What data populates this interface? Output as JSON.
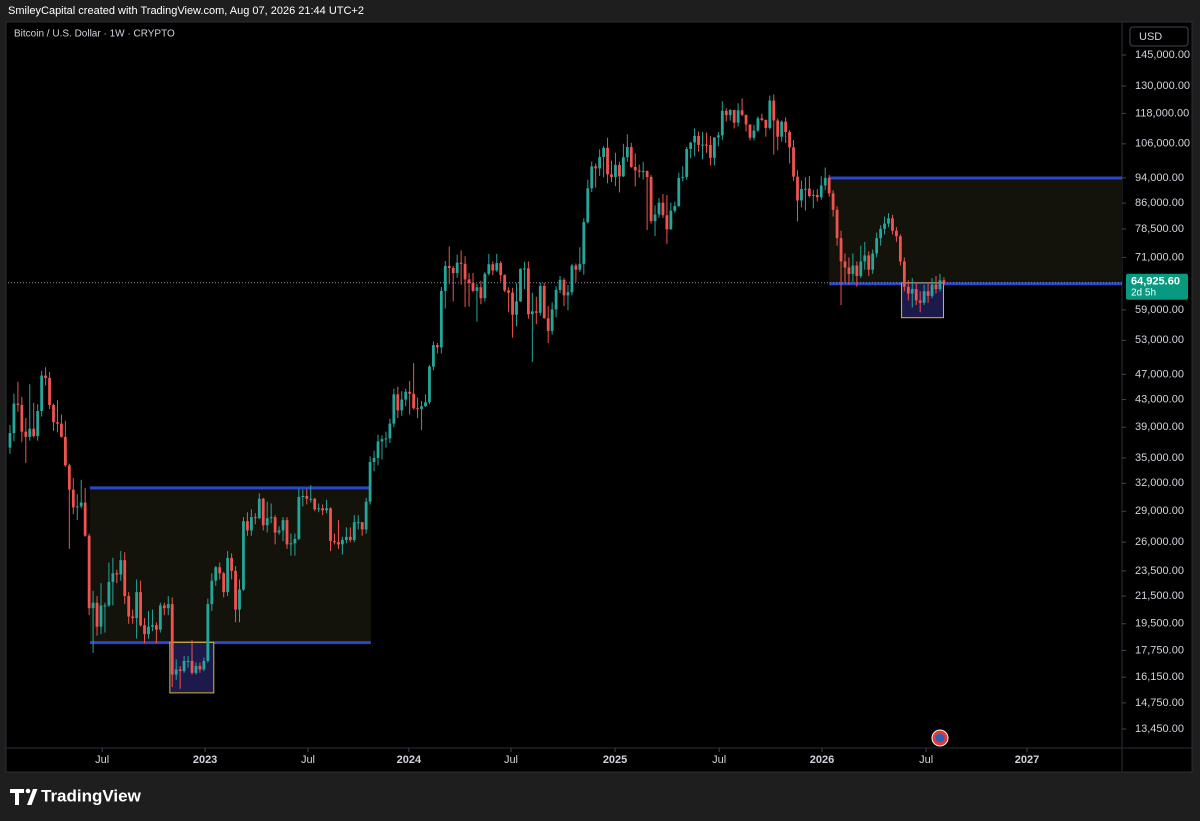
{
  "header": {
    "text": "SmileyCapital created with TradingView.com, Aug 07, 2026 21:44 UTC+2"
  },
  "chart_data": {
    "type": "candlestick",
    "title": "Bitcoin / U.S. Dollar · 1W · CRYPTO",
    "currency": "USD",
    "open": [
      36300,
      38200,
      42400,
      42200,
      38400,
      37700,
      38800,
      37800,
      41300,
      46800,
      46400,
      42200,
      39700,
      39500,
      37700,
      34100,
      31300,
      29400,
      29500,
      29900,
      26600,
      20600,
      21000,
      19300,
      20800,
      20800,
      22600,
      23300,
      23200,
      24400,
      21500,
      20000,
      19900,
      21800,
      19400,
      18800,
      19300,
      19400,
      19100,
      20800,
      20600,
      20900,
      16300,
      16600,
      16500,
      17100,
      17100,
      16400,
      16800,
      16600,
      17100,
      20900,
      22700,
      23800,
      23300,
      21800,
      24600,
      23500,
      20500,
      22000,
      28000,
      27100,
      28400,
      28300,
      30300,
      27600,
      28300,
      28400,
      26900,
      27100,
      28100,
      25800,
      25900,
      26300,
      30500,
      30600,
      30300,
      30300,
      29200,
      29300,
      29100,
      29300,
      26100,
      26000,
      25800,
      26200,
      26500,
      26200,
      27900,
      27900,
      27200,
      30000,
      34500,
      35000,
      37100,
      37400,
      37500,
      39500,
      43800,
      41400,
      43000,
      44200,
      43900,
      41700,
      41600,
      42000,
      42600,
      48300,
      52100,
      51700,
      63100,
      68900,
      68400,
      67200,
      69700,
      69400,
      65700,
      64900,
      63100,
      63900,
      61500,
      67000,
      69300,
      67800,
      69600,
      66700,
      63200,
      62700,
      58000,
      60800,
      68200,
      68300,
      58100,
      58700,
      58400,
      64200,
      57300,
      54800,
      59100,
      63300,
      65600,
      62100,
      62800,
      69000,
      68000,
      69400,
      80400,
      90600,
      97900,
      97200,
      101200,
      104500,
      95200,
      94300,
      98400,
      94500,
      101100,
      104800,
      97700,
      96500,
      96100,
      96300,
      94300,
      80700,
      82600,
      86100,
      82400,
      78400,
      83700,
      85100,
      94000,
      94300,
      104100,
      106500,
      109000,
      105600,
      105700,
      105600,
      100900,
      108400,
      109200,
      119100,
      117300,
      119400,
      114200,
      119300,
      117400,
      113500,
      108300,
      111100,
      116000,
      115300,
      112100,
      123500,
      115100,
      108700,
      114600,
      110500,
      104700,
      94400,
      86800,
      90400,
      90500,
      88200,
      88500,
      87800,
      91500,
      94000,
      89000,
      84000,
      76000,
      70000,
      68500,
      67000,
      69000,
      66500,
      70000,
      71500,
      68000,
      72000,
      76000,
      78500,
      80000,
      81500,
      78000,
      76500,
      70000,
      64000,
      62500,
      63500,
      61000,
      60500,
      63000,
      62000,
      64500,
      63500,
      65500
    ],
    "high": [
      39300,
      43900,
      45800,
      43400,
      40300,
      45400,
      42500,
      42300,
      47600,
      48200,
      47400,
      42400,
      42900,
      40800,
      39900,
      34300,
      32600,
      30800,
      32400,
      31500,
      26800,
      21900,
      21500,
      22500,
      21000,
      24200,
      24600,
      23600,
      25200,
      25100,
      21800,
      20500,
      22800,
      22700,
      19900,
      20400,
      20500,
      19600,
      21000,
      21000,
      21500,
      21400,
      17200,
      16800,
      17400,
      17400,
      18400,
      17000,
      17000,
      17300,
      21300,
      23300,
      23900,
      24200,
      23400,
      25200,
      25000,
      23900,
      22800,
      28400,
      28900,
      29200,
      28800,
      30900,
      30400,
      30000,
      29800,
      28600,
      27500,
      28400,
      28400,
      26800,
      26800,
      31400,
      31300,
      31400,
      31800,
      30400,
      29800,
      29700,
      30200,
      29400,
      26800,
      28100,
      26500,
      27400,
      27400,
      28600,
      28600,
      27900,
      30400,
      35200,
      35900,
      38000,
      37900,
      38400,
      40200,
      44700,
      45000,
      44300,
      44700,
      45900,
      48900,
      43300,
      42800,
      43800,
      48600,
      52800,
      52500,
      64000,
      70100,
      73800,
      68900,
      71700,
      72800,
      71300,
      67200,
      67200,
      64700,
      65400,
      67400,
      71900,
      70000,
      71900,
      70100,
      66900,
      63900,
      63800,
      64800,
      68300,
      69900,
      70000,
      62700,
      61800,
      65000,
      64900,
      59800,
      60600,
      64100,
      66500,
      66000,
      64400,
      69400,
      69500,
      73600,
      81500,
      93400,
      99600,
      98900,
      104000,
      105100,
      108300,
      99900,
      102700,
      99500,
      106000,
      109600,
      106400,
      102500,
      98500,
      99500,
      96500,
      95000,
      85300,
      87500,
      88800,
      88500,
      86100,
      86400,
      95700,
      97900,
      104900,
      106700,
      111900,
      110700,
      110500,
      110300,
      108900,
      108500,
      110500,
      123200,
      120200,
      119800,
      119500,
      122300,
      124400,
      117500,
      113500,
      113300,
      116800,
      117900,
      115500,
      125700,
      126200,
      115900,
      115100,
      116400,
      111200,
      107500,
      96600,
      93100,
      94200,
      94600,
      90100,
      90300,
      94500,
      97500,
      95000,
      90000,
      85000,
      78000,
      72000,
      71000,
      72000,
      70000,
      74000,
      75000,
      72500,
      73000,
      77500,
      79500,
      82000,
      83000,
      82500,
      79000,
      77000,
      71000,
      65500,
      66000,
      65000,
      63000,
      64500,
      65000,
      66000,
      66500,
      67000,
      66200
    ],
    "low": [
      35500,
      37100,
      41200,
      37000,
      34400,
      37200,
      37600,
      37200,
      40500,
      45200,
      41600,
      38500,
      38300,
      37600,
      33900,
      25400,
      28700,
      28100,
      29300,
      26500,
      20100,
      17600,
      18700,
      18800,
      18900,
      20700,
      20800,
      22500,
      22700,
      20900,
      19500,
      19500,
      18500,
      19300,
      18200,
      18500,
      19000,
      18200,
      18900,
      20100,
      20100,
      15600,
      16000,
      15500,
      16400,
      16700,
      16300,
      16300,
      16400,
      16500,
      17000,
      20400,
      22300,
      22800,
      21400,
      21500,
      22800,
      19600,
      19600,
      21900,
      26600,
      26600,
      27700,
      28200,
      27100,
      26900,
      27800,
      25800,
      26700,
      26100,
      25400,
      24800,
      24800,
      26200,
      29500,
      29700,
      29900,
      29000,
      28900,
      28600,
      28800,
      25200,
      25800,
      25400,
      24900,
      25900,
      26000,
      26000,
      27200,
      26600,
      26800,
      29700,
      33400,
      34100,
      34800,
      36300,
      36900,
      39000,
      40300,
      40600,
      42000,
      40800,
      41500,
      40300,
      38600,
      41900,
      42300,
      47700,
      50600,
      50600,
      59300,
      64600,
      60800,
      66100,
      64500,
      59600,
      59700,
      62800,
      56600,
      60200,
      60800,
      66600,
      66700,
      67500,
      65200,
      62800,
      58500,
      53500,
      55700,
      60700,
      63500,
      57200,
      49100,
      56100,
      57800,
      57200,
      52500,
      54100,
      57500,
      62600,
      59800,
      58900,
      62100,
      65100,
      67500,
      66800,
      80000,
      89400,
      90800,
      94600,
      94200,
      92200,
      92600,
      91300,
      89300,
      94300,
      99500,
      97400,
      91200,
      94100,
      93400,
      78200,
      80000,
      76600,
      81700,
      81600,
      74500,
      78300,
      83100,
      84900,
      92800,
      93400,
      100700,
      101400,
      103100,
      100400,
      102700,
      98200,
      98200,
      105100,
      107500,
      114700,
      115000,
      111900,
      112700,
      116800,
      110700,
      107300,
      107300,
      110600,
      114800,
      108700,
      111500,
      102000,
      103600,
      106800,
      106300,
      98900,
      93000,
      80600,
      84700,
      83800,
      87700,
      84400,
      86500,
      87000,
      90000,
      88000,
      82000,
      74000,
      60000,
      65000,
      64500,
      65000,
      64000,
      66000,
      68000,
      66500,
      67000,
      71000,
      74000,
      77000,
      79000,
      77000,
      75000,
      69000,
      63000,
      61000,
      59500,
      60000,
      58500,
      60000,
      60500,
      61500,
      62500,
      63000,
      64300
    ],
    "close": [
      38200,
      42400,
      42200,
      38400,
      37700,
      38800,
      37800,
      41300,
      46800,
      46400,
      42200,
      39700,
      39500,
      37700,
      34100,
      31300,
      29400,
      29500,
      29900,
      26600,
      20600,
      21000,
      19300,
      20800,
      20800,
      22600,
      23300,
      23200,
      24400,
      21500,
      20000,
      19900,
      21800,
      19400,
      18800,
      19300,
      19400,
      19100,
      20800,
      20600,
      20900,
      16300,
      16600,
      16500,
      17100,
      17100,
      16400,
      16800,
      16600,
      17100,
      20900,
      22700,
      23800,
      23300,
      21800,
      24600,
      23500,
      20500,
      22000,
      28000,
      27100,
      28400,
      28300,
      30300,
      27600,
      28300,
      28400,
      26900,
      27100,
      28100,
      25800,
      25900,
      26300,
      30500,
      30600,
      30300,
      30300,
      29200,
      29300,
      29100,
      29300,
      26100,
      26000,
      25800,
      26200,
      26500,
      26200,
      27900,
      27900,
      27200,
      30000,
      34500,
      35000,
      37100,
      37400,
      37500,
      39500,
      43800,
      41400,
      43000,
      44200,
      43900,
      41700,
      41600,
      42000,
      42600,
      48300,
      52100,
      51700,
      63100,
      68900,
      68400,
      67200,
      69700,
      69400,
      65700,
      64900,
      63100,
      63900,
      61500,
      67000,
      69300,
      67800,
      69600,
      66700,
      63200,
      62700,
      58000,
      60800,
      68200,
      68300,
      58100,
      58700,
      58400,
      64200,
      57300,
      54800,
      59100,
      63300,
      65600,
      62100,
      62800,
      69000,
      68000,
      69400,
      80400,
      90600,
      97900,
      97200,
      101200,
      104500,
      95200,
      94300,
      98400,
      94500,
      101100,
      104800,
      97700,
      96500,
      96100,
      96300,
      94300,
      80700,
      82600,
      86100,
      82400,
      78400,
      83700,
      85100,
      94000,
      94300,
      104100,
      106500,
      109000,
      105600,
      105700,
      105600,
      100900,
      108400,
      109200,
      119100,
      117300,
      119400,
      114200,
      119300,
      117400,
      113500,
      108300,
      111100,
      116000,
      115300,
      112100,
      123500,
      115100,
      108700,
      114600,
      110500,
      104700,
      94400,
      86800,
      90400,
      90500,
      88200,
      88500,
      87800,
      91500,
      94000,
      89000,
      84000,
      76000,
      70000,
      68500,
      67000,
      69000,
      66500,
      70000,
      71500,
      68000,
      72000,
      76000,
      78500,
      80000,
      81500,
      78000,
      76500,
      70000,
      64000,
      62500,
      63500,
      61000,
      60500,
      63000,
      62000,
      64500,
      63500,
      65500,
      64925.6
    ],
    "up_color": "#26a69a",
    "down_color": "#ef5350",
    "xlim": [
      -0.5,
      281
    ],
    "xticks": [
      {
        "value": 23.3,
        "label": "Jul"
      },
      {
        "value": 49.3,
        "label": "2023"
      },
      {
        "value": 75.3,
        "label": "Jul"
      },
      {
        "value": 100.8,
        "label": "2024"
      },
      {
        "value": 126.6,
        "label": "Jul"
      },
      {
        "value": 152.9,
        "label": "2025"
      },
      {
        "value": 179.2,
        "label": "Jul"
      },
      {
        "value": 205.2,
        "label": "2026"
      },
      {
        "value": 231.5,
        "label": "Jul"
      },
      {
        "value": 257,
        "label": "2027"
      }
    ],
    "ylim": [
      12580,
      162900
    ],
    "log_scale": true,
    "yticks": [
      {
        "value": 145000,
        "label": "145,000.00"
      },
      {
        "value": 130000,
        "label": "130,000.00"
      },
      {
        "value": 118000,
        "label": "118,000.00"
      },
      {
        "value": 106000,
        "label": "106,000.00"
      },
      {
        "value": 94000,
        "label": "94,000.00"
      },
      {
        "value": 86000,
        "label": "86,000.00"
      },
      {
        "value": 78500,
        "label": "78,500.00"
      },
      {
        "value": 71000,
        "label": "71,000.00"
      },
      {
        "value": 59000,
        "label": "59,000.00"
      },
      {
        "value": 53000,
        "label": "53,000.00"
      },
      {
        "value": 47000,
        "label": "47,000.00"
      },
      {
        "value": 43000,
        "label": "43,000.00"
      },
      {
        "value": 39000,
        "label": "39,000.00"
      },
      {
        "value": 35000,
        "label": "35,000.00"
      },
      {
        "value": 32000,
        "label": "32,000.00"
      },
      {
        "value": 29000,
        "label": "29,000.00"
      },
      {
        "value": 26000,
        "label": "26,000.00"
      },
      {
        "value": 23500,
        "label": "23,500.00"
      },
      {
        "value": 21500,
        "label": "21,500.00"
      },
      {
        "value": 19500,
        "label": "19,500.00"
      },
      {
        "value": 17750,
        "label": "17,750.00"
      },
      {
        "value": 16150,
        "label": "16,150.00"
      },
      {
        "value": 14750,
        "label": "14,750.00"
      },
      {
        "value": 13450,
        "label": "13,450.00"
      }
    ],
    "last_price": {
      "label": "64,925.60",
      "countdown": "2d 5h"
    },
    "zones": [
      {
        "top": 31490,
        "bottom": 18240,
        "start": 20.2,
        "end": 91.2
      },
      {
        "top": 93960,
        "bottom": 64690,
        "start": 207,
        "end": 281
      }
    ],
    "boxes": [
      {
        "top": 18260,
        "bottom": 15280,
        "start": 40.4,
        "end": 51.5
      },
      {
        "top": 64900,
        "bottom": 57400,
        "start": 225.3,
        "end": 235.9
      }
    ]
  },
  "footer": {
    "brand": "TradingView"
  }
}
